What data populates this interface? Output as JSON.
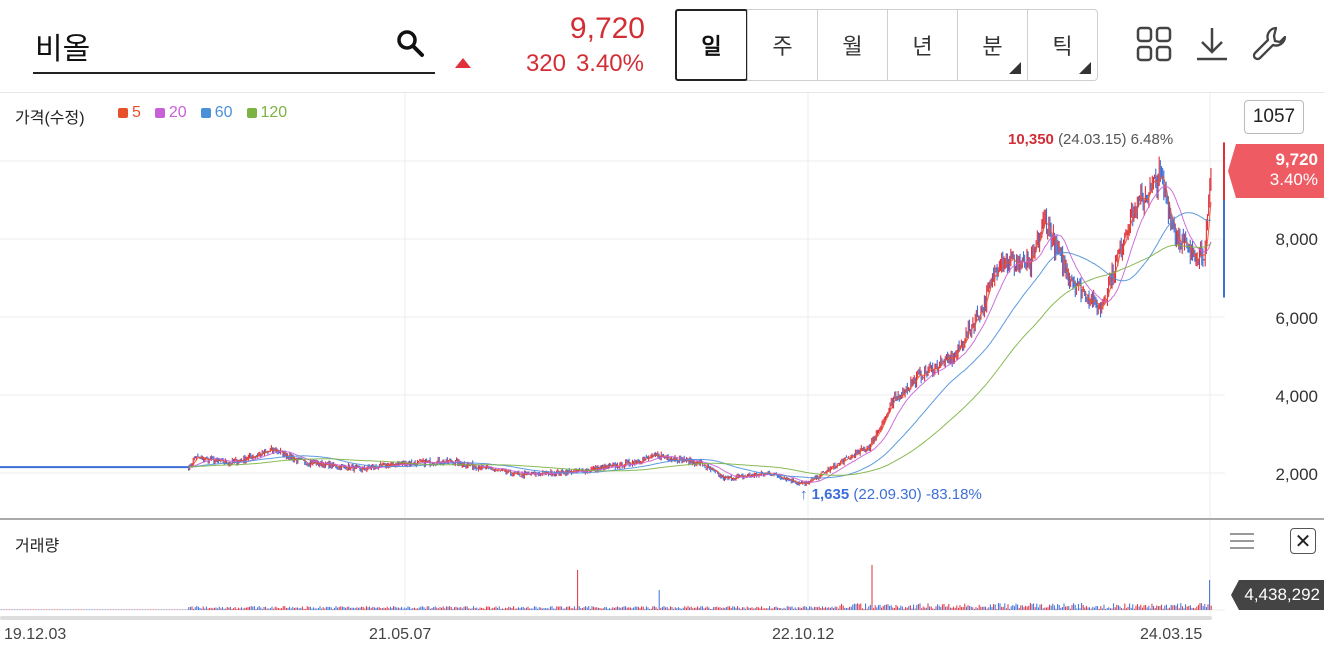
{
  "header": {
    "stock_name": "비올",
    "price": "9,720",
    "change": "320",
    "change_pct": "3.40%",
    "period_tabs": [
      {
        "label": "일",
        "active": true,
        "has_menu": false
      },
      {
        "label": "주",
        "active": false,
        "has_menu": false
      },
      {
        "label": "월",
        "active": false,
        "has_menu": false
      },
      {
        "label": "년",
        "active": false,
        "has_menu": false
      },
      {
        "label": "분",
        "active": false,
        "has_menu": true
      },
      {
        "label": "틱",
        "active": false,
        "has_menu": true
      }
    ],
    "icons": [
      "grid-icon",
      "download-icon",
      "wrench-icon"
    ]
  },
  "chart": {
    "price_label": "가격(수정)",
    "legend": [
      {
        "label": "5",
        "color": "#e8502a"
      },
      {
        "label": "20",
        "color": "#c860d8"
      },
      {
        "label": "60",
        "color": "#4a90d9"
      },
      {
        "label": "120",
        "color": "#7cb342"
      }
    ],
    "zoom_badge": "1057",
    "current_price": "9,720",
    "current_pct": "3.40%",
    "y_ticks": [
      "8,000",
      "6,000",
      "4,000",
      "2,000"
    ],
    "max_note": {
      "price": "10,350",
      "date": "(24.03.15)",
      "pct": "6.48%"
    },
    "min_note": {
      "price": "1,635",
      "date": "(22.09.30)",
      "pct": "-83.18%"
    },
    "volume_label": "거래량",
    "volume_value": "4,438,292",
    "x_labels": [
      "19.12.03",
      "21.05.07",
      "22.10.12",
      "24.03.15"
    ],
    "colors": {
      "up": "#e0303c",
      "down": "#3d6fd8",
      "accent": "#d22e36"
    }
  },
  "chart_data": {
    "type": "line",
    "title": "",
    "x": [
      "19.12.03",
      "21.05.07",
      "22.10.12",
      "24.03.15"
    ],
    "series": [
      {
        "name": "가격(수정)",
        "values": [
          2150,
          2200,
          1800,
          9720
        ]
      }
    ],
    "ylim": [
      1000,
      11000
    ],
    "xlabel": "",
    "ylabel": ""
  }
}
